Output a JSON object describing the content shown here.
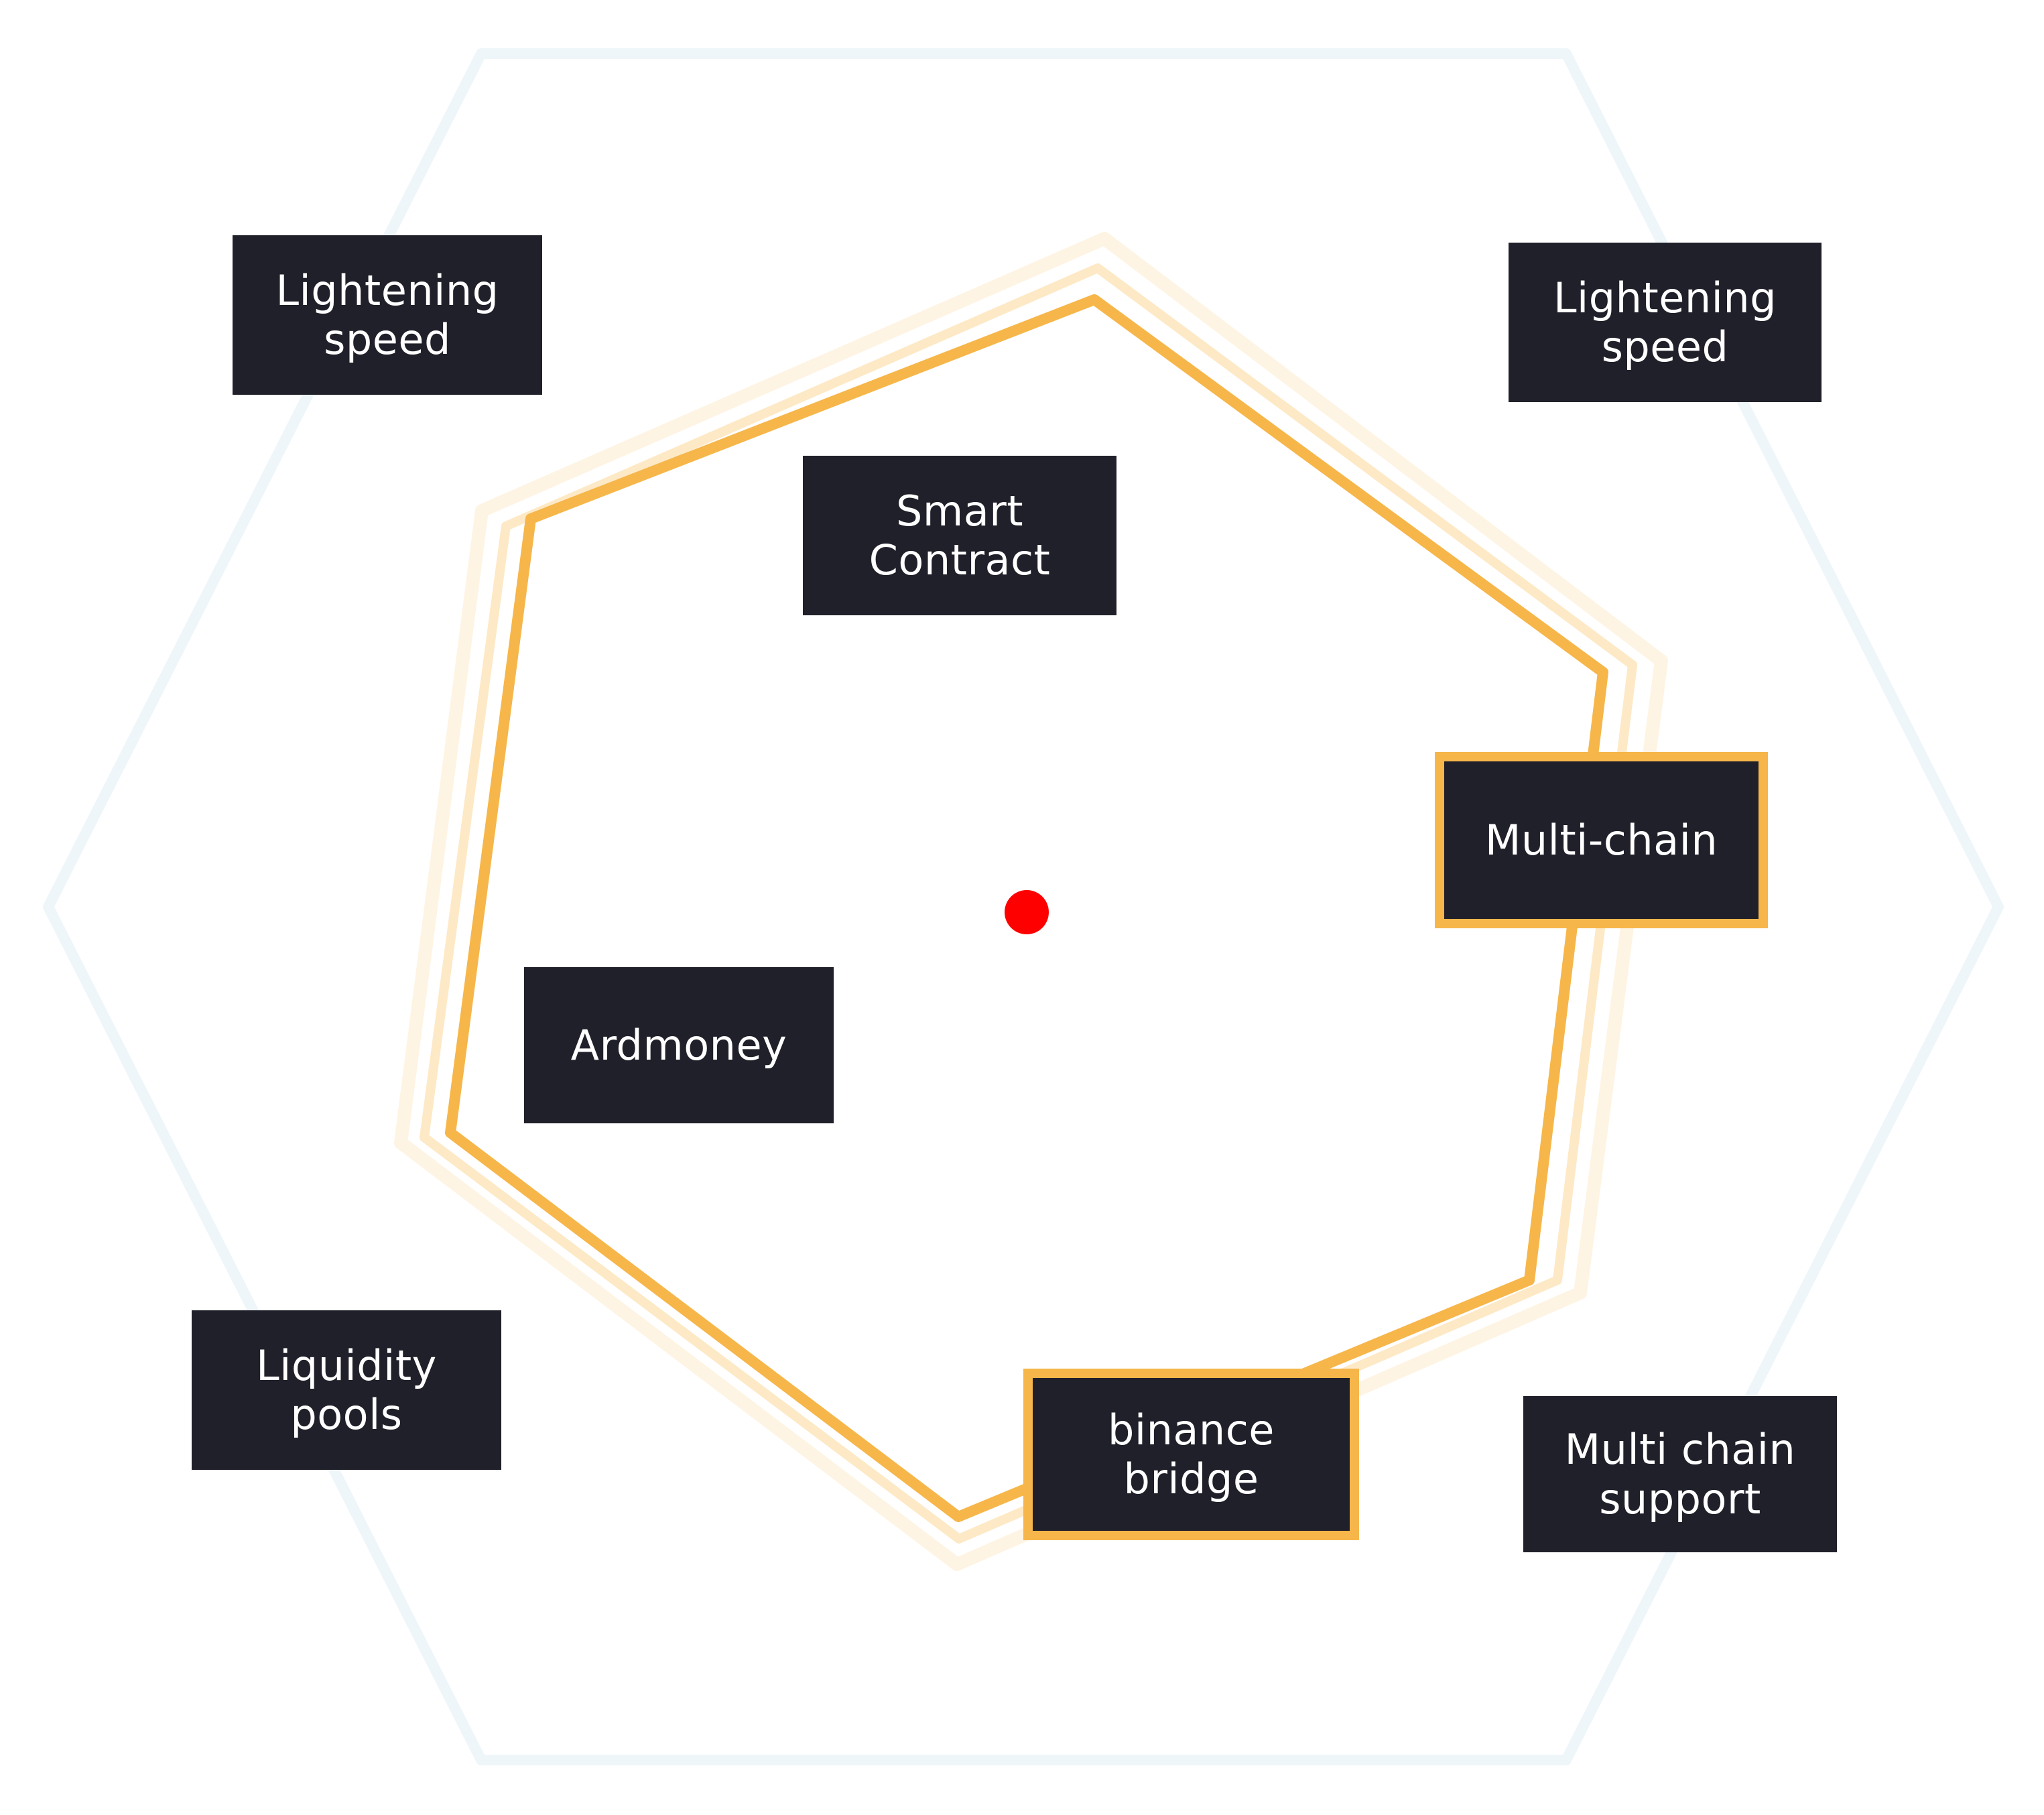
{
  "diagram": {
    "nodes": {
      "lightening_speed_left": "Lightening\nspeed",
      "lightening_speed_right": "Lightening\nspeed",
      "smart_contract": "Smart\nContract",
      "multi_chain": "Multi-chain",
      "ardmoney": "Ardmoney",
      "binance_bridge": "binance\nbridge",
      "liquidity_pools": "Liquidity\npools",
      "multi_chain_support": "Multi chain\nsupport"
    },
    "colors": {
      "outer_hexagon": "#eef6fa",
      "inner_hexagon": "#f6b64a",
      "inner_glow": "#fde9c6",
      "box_fill": "#20202a",
      "box_text": "#ffffff",
      "center_dot": "#ff0000"
    }
  }
}
